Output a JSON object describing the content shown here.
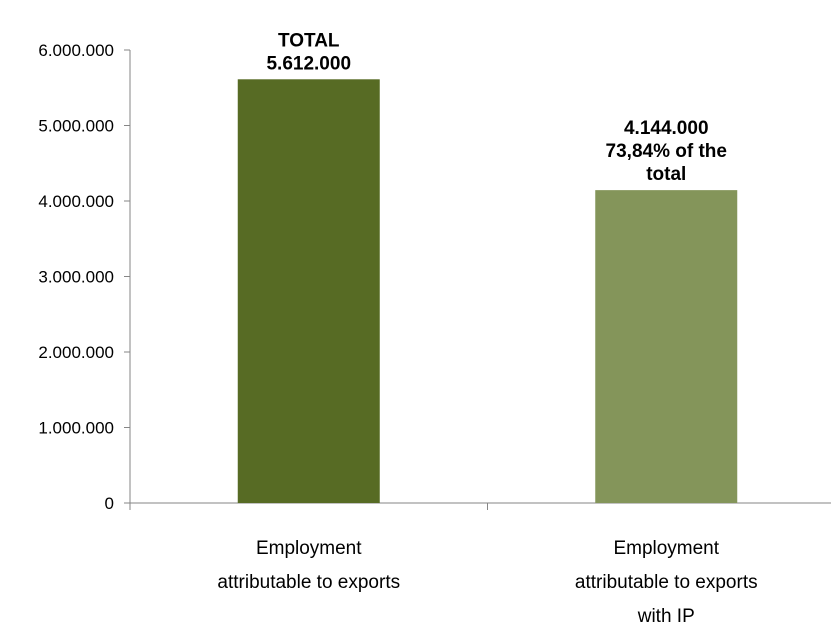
{
  "chart_data": {
    "type": "bar",
    "categories": [
      [
        "Employment",
        "attributable to exports"
      ],
      [
        "Employment",
        "attributable to exports",
        "with IP"
      ]
    ],
    "values": [
      5612000,
      4144000
    ],
    "data_labels": [
      [
        "TOTAL",
        "5.612.000"
      ],
      [
        "4.144.000",
        "73,84% of the",
        "total"
      ]
    ],
    "bar_colors": [
      "#576b24",
      "#84955a"
    ],
    "ylim": [
      0,
      6000000
    ],
    "yticks": [
      0,
      1000000,
      2000000,
      3000000,
      4000000,
      5000000,
      6000000
    ],
    "ytick_labels": [
      "0",
      "1.000.000",
      "2.000.000",
      "3.000.000",
      "4.000.000",
      "5.000.000",
      "6.000.000"
    ],
    "title": "",
    "xlabel": "",
    "ylabel": "",
    "grid": false,
    "legend": "none"
  }
}
